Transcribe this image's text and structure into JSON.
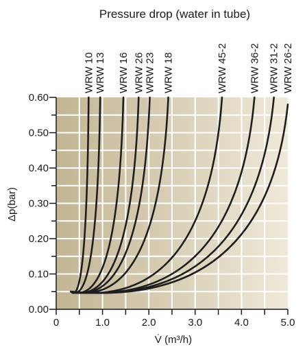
{
  "chart_data": {
    "type": "line",
    "title": "Pressure drop (water in tube)",
    "xlabel": "V̇ (m³/h)",
    "ylabel": "Δp(bar)",
    "xlim": [
      0,
      5.0
    ],
    "ylim": [
      0,
      0.6
    ],
    "xticks": [
      0,
      1.0,
      2.0,
      3.0,
      4.0,
      5.0
    ],
    "xtick_labels": [
      "0",
      "1.0",
      "2.0",
      "3.0",
      "4.0",
      "5.0"
    ],
    "yticks": [
      0.0,
      0.1,
      0.2,
      0.3,
      0.4,
      0.5,
      0.6
    ],
    "ytick_labels": [
      "0.00",
      "0.10",
      "0.20",
      "0.30",
      "0.40",
      "0.50",
      "0.60"
    ],
    "grid": true,
    "legend": "labels above curves",
    "colors": {
      "background_dark": "#c2b594",
      "background_light": "#efe9d9",
      "curve": "#1e1e1e",
      "grid": "#ffffff"
    },
    "series": [
      {
        "name": "WRW 10",
        "x": [
          0.7,
          0.72
        ],
        "y": [
          0.6,
          0.55
        ]
      },
      {
        "name": "WRW 13",
        "x": [
          0.95,
          0.97
        ],
        "y": [
          0.6,
          0.55
        ]
      },
      {
        "name": "WRW 16",
        "x": [
          1.45,
          1.48
        ],
        "y": [
          0.6,
          0.55
        ]
      },
      {
        "name": "WRW 26",
        "x": [
          1.78,
          1.82
        ],
        "y": [
          0.6,
          0.55
        ]
      },
      {
        "name": "WRW 23",
        "x": [
          2.02,
          2.06
        ],
        "y": [
          0.6,
          0.55
        ]
      },
      {
        "name": "WRW 18",
        "x": [
          2.42,
          2.47
        ],
        "y": [
          0.6,
          0.55
        ]
      },
      {
        "name": "WRW 45-2",
        "x": [
          3.58,
          3.68
        ],
        "y": [
          0.6,
          0.55
        ]
      },
      {
        "name": "WRW 36-2",
        "x": [
          4.28,
          4.4
        ],
        "y": [
          0.6,
          0.55
        ]
      },
      {
        "name": "WRW 31-2",
        "x": [
          4.7,
          4.83
        ],
        "y": [
          0.6,
          0.55
        ]
      },
      {
        "name": "WRW 26-2",
        "x": [
          5.0,
          5.0
        ],
        "y": [
          0.58,
          0.55
        ]
      }
    ]
  }
}
